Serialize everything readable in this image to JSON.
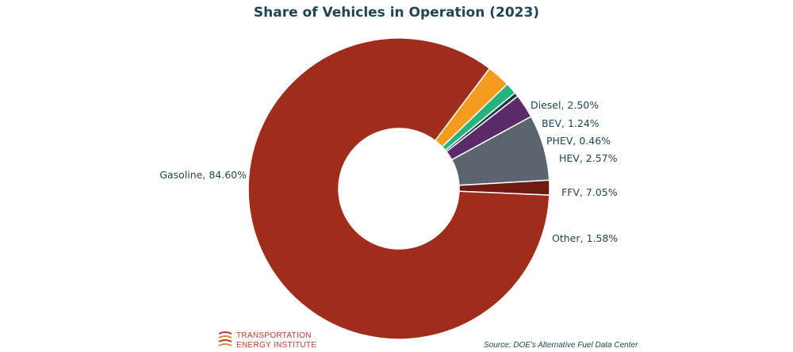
{
  "chart_data": {
    "type": "pie",
    "donut": true,
    "title": "Share of Vehicles in Operation (2023)",
    "slices": [
      {
        "name": "Diesel",
        "value": 2.5,
        "label": "Diesel, 2.50%",
        "color": "#f39c1f"
      },
      {
        "name": "BEV",
        "value": 1.24,
        "label": "BEV, 1.24%",
        "color": "#27b37e"
      },
      {
        "name": "PHEV",
        "value": 0.46,
        "label": "PHEV, 0.46%",
        "color": "#1c3a4e"
      },
      {
        "name": "HEV",
        "value": 2.57,
        "label": "HEV, 2.57%",
        "color": "#5b2a6b"
      },
      {
        "name": "FFV",
        "value": 7.05,
        "label": "FFV, 7.05%",
        "color": "#5a6570"
      },
      {
        "name": "Other",
        "value": 1.58,
        "label": "Other, 1.58%",
        "color": "#6e1a12"
      },
      {
        "name": "Gasoline",
        "value": 84.6,
        "label": "Gasoline, 84.60%",
        "color": "#a02c1c"
      }
    ]
  },
  "logo": {
    "line1": "TRANSPORTATION",
    "line2": "ENERGY INSTITUTE"
  },
  "source": "Source:  DOE's Alternative Fuel Data Center"
}
